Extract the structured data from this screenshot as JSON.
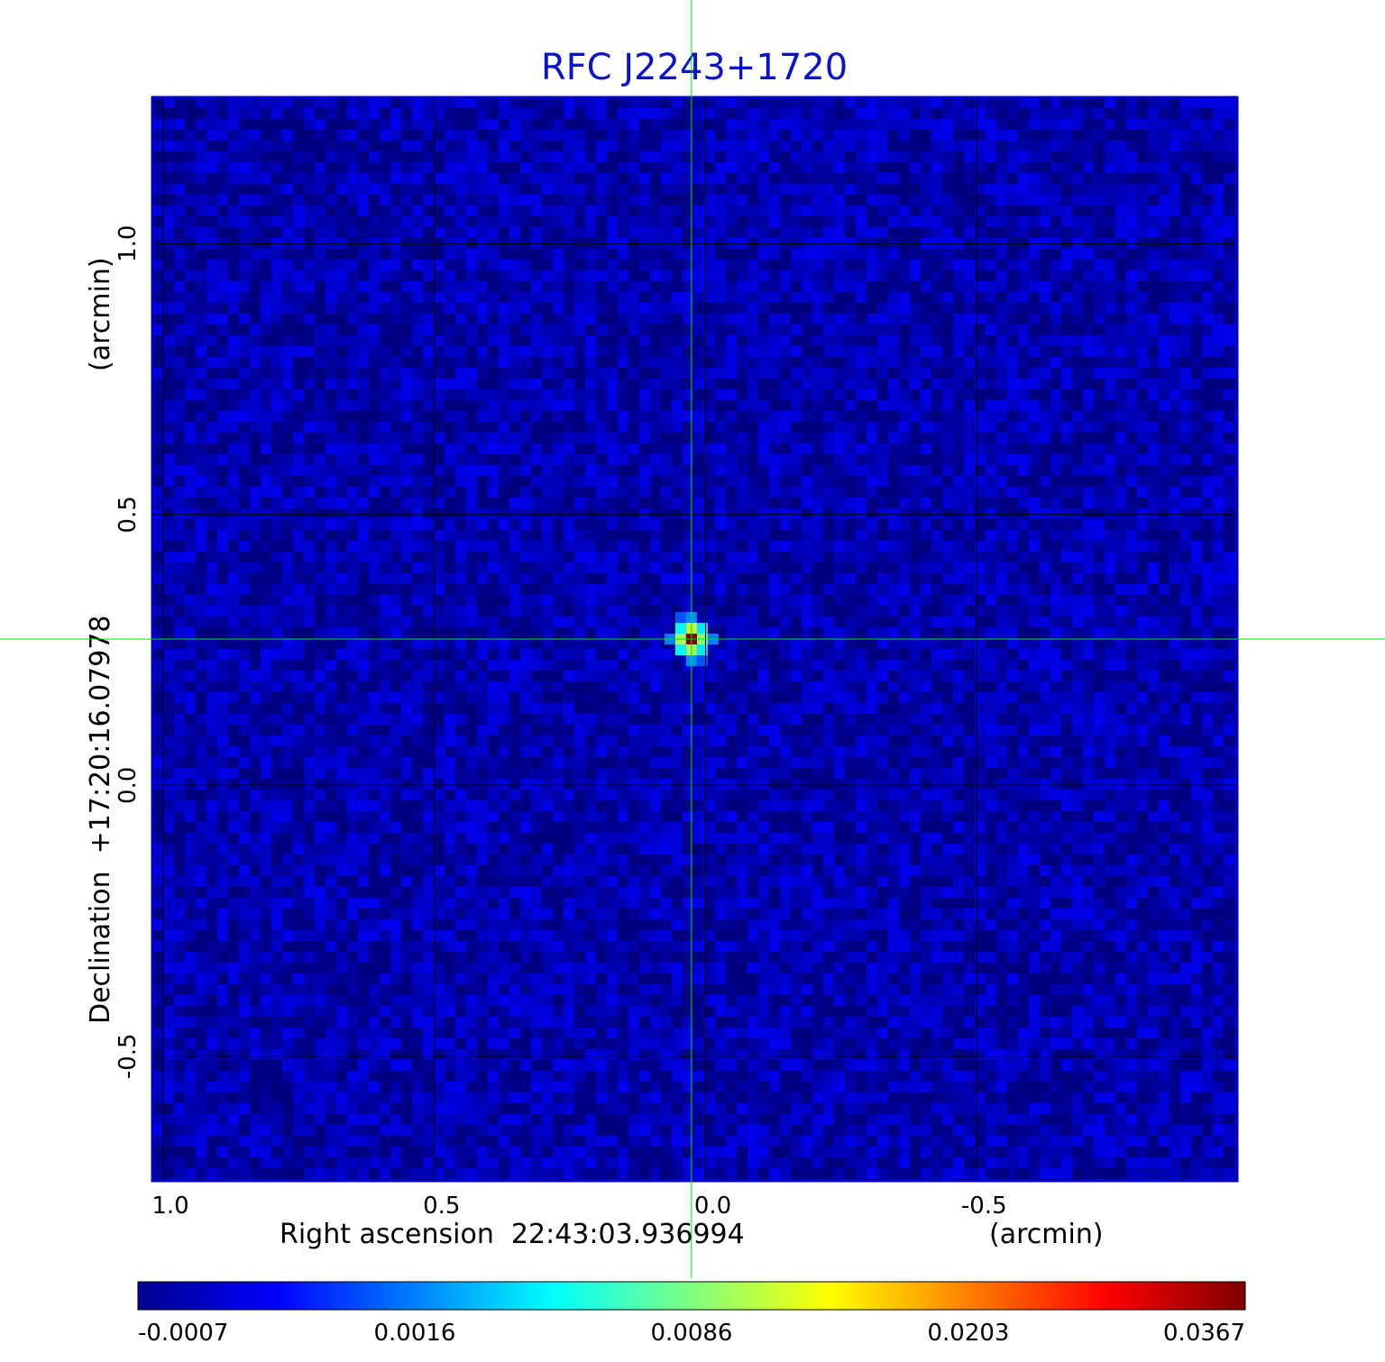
{
  "chart_data": {
    "type": "heatmap",
    "title": "RFC J2243+1720",
    "xlabel": "Right ascension  22:43:03.936994",
    "xunit": "(arcmin)",
    "ylabel": "Declination  +17:20:16.07978",
    "yunit": "(arcmin)",
    "x_ticks": [
      "1.0",
      "0.5",
      "0.0",
      "-0.5"
    ],
    "x_tick_values": [
      1.0,
      0.5,
      0.0,
      -0.5
    ],
    "y_ticks": [
      "1.0",
      "0.5",
      "0.0",
      "-0.5"
    ],
    "y_tick_values": [
      1.0,
      0.5,
      0.0,
      -0.5
    ],
    "xlim": [
      1.02,
      -0.98
    ],
    "ylim": [
      -0.73,
      1.27
    ],
    "grid": true,
    "crosshair": {
      "x": 0.026,
      "y": 0.27
    },
    "source_peak": {
      "x": 0.026,
      "y": 0.27,
      "value": 0.0367
    },
    "background_level": -0.0003,
    "colorbar": {
      "colormap": "jet",
      "ticks": [
        "-0.0007",
        "0.0016",
        "0.0086",
        "0.0203",
        "0.0367"
      ],
      "tick_values": [
        -0.0007,
        0.0016,
        0.0086,
        0.0203,
        0.0367
      ]
    },
    "colors": {
      "title": "#0a14c8",
      "crosshair": "#00e000",
      "grid": "#000000",
      "frame": "#0000c8"
    }
  }
}
